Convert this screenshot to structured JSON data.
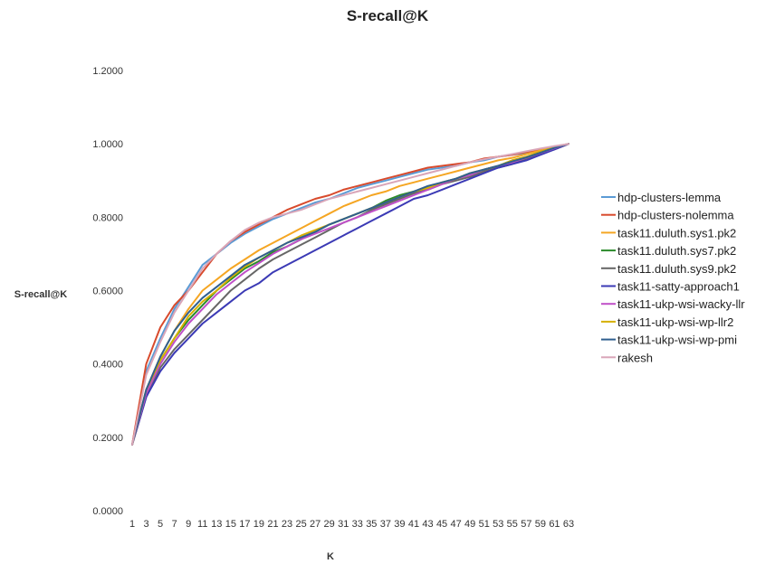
{
  "chart_data": {
    "type": "line",
    "title": "S-recall@K",
    "xlabel": "K",
    "ylabel": "S-recall@K",
    "ylim": [
      0,
      1.2
    ],
    "y_ticks": [
      "0.0000",
      "0.2000",
      "0.4000",
      "0.6000",
      "0.8000",
      "1.0000",
      "1.2000"
    ],
    "x_tick_labels": [
      "1",
      "3",
      "5",
      "7",
      "9",
      "11",
      "13",
      "15",
      "17",
      "19",
      "21",
      "23",
      "25",
      "27",
      "29",
      "31",
      "33",
      "35",
      "37",
      "39",
      "41",
      "43",
      "45",
      "47",
      "49",
      "51",
      "53",
      "55",
      "57",
      "59",
      "61",
      "63"
    ],
    "x": [
      1,
      3,
      5,
      7,
      9,
      11,
      13,
      15,
      17,
      19,
      21,
      23,
      25,
      27,
      29,
      31,
      33,
      35,
      37,
      39,
      41,
      43,
      45,
      47,
      49,
      51,
      53,
      55,
      57,
      59,
      61,
      63
    ],
    "grid": false,
    "legend_position": "right",
    "series": [
      {
        "name": "hdp-clusters-lemma",
        "color": "#5b9bd5",
        "values": [
          0.18,
          0.38,
          0.47,
          0.55,
          0.61,
          0.67,
          0.7,
          0.73,
          0.755,
          0.775,
          0.795,
          0.81,
          0.825,
          0.84,
          0.85,
          0.865,
          0.88,
          0.89,
          0.9,
          0.91,
          0.92,
          0.93,
          0.935,
          0.94,
          0.95,
          0.955,
          0.965,
          0.97,
          0.975,
          0.985,
          0.992,
          1.0
        ]
      },
      {
        "name": "hdp-clusters-nolemma",
        "color": "#d84a2c",
        "values": [
          0.18,
          0.4,
          0.5,
          0.56,
          0.6,
          0.65,
          0.7,
          0.735,
          0.76,
          0.78,
          0.8,
          0.82,
          0.835,
          0.85,
          0.86,
          0.875,
          0.885,
          0.895,
          0.905,
          0.915,
          0.925,
          0.935,
          0.94,
          0.945,
          0.95,
          0.96,
          0.965,
          0.97,
          0.978,
          0.985,
          0.992,
          1.0
        ]
      },
      {
        "name": "task11.duluth.sys1.pk2",
        "color": "#f5a623",
        "values": [
          0.18,
          0.33,
          0.42,
          0.49,
          0.55,
          0.6,
          0.63,
          0.66,
          0.685,
          0.71,
          0.73,
          0.75,
          0.77,
          0.79,
          0.81,
          0.83,
          0.845,
          0.86,
          0.87,
          0.885,
          0.895,
          0.905,
          0.915,
          0.925,
          0.935,
          0.945,
          0.955,
          0.962,
          0.972,
          0.982,
          0.991,
          1.0
        ]
      },
      {
        "name": "task11.duluth.sys7.pk2",
        "color": "#2b8a2b",
        "values": [
          0.18,
          0.32,
          0.41,
          0.47,
          0.52,
          0.56,
          0.6,
          0.63,
          0.66,
          0.68,
          0.705,
          0.72,
          0.74,
          0.76,
          0.78,
          0.795,
          0.81,
          0.825,
          0.845,
          0.86,
          0.87,
          0.88,
          0.895,
          0.905,
          0.915,
          0.93,
          0.94,
          0.955,
          0.965,
          0.978,
          0.99,
          1.0
        ]
      },
      {
        "name": "task11.duluth.sys9.pk2",
        "color": "#666666",
        "values": [
          0.18,
          0.31,
          0.39,
          0.44,
          0.48,
          0.52,
          0.56,
          0.6,
          0.63,
          0.66,
          0.685,
          0.705,
          0.725,
          0.745,
          0.765,
          0.785,
          0.8,
          0.82,
          0.835,
          0.85,
          0.865,
          0.875,
          0.89,
          0.9,
          0.91,
          0.925,
          0.935,
          0.945,
          0.96,
          0.972,
          0.985,
          1.0
        ]
      },
      {
        "name": "task11-satty-approach1",
        "color": "#3b3ab5",
        "values": [
          0.18,
          0.31,
          0.38,
          0.43,
          0.47,
          0.51,
          0.54,
          0.57,
          0.6,
          0.62,
          0.65,
          0.67,
          0.69,
          0.71,
          0.73,
          0.75,
          0.77,
          0.79,
          0.81,
          0.83,
          0.85,
          0.86,
          0.875,
          0.89,
          0.905,
          0.92,
          0.935,
          0.945,
          0.955,
          0.97,
          0.985,
          1.0
        ]
      },
      {
        "name": "task11-ukp-wsi-wacky-llr",
        "color": "#c050c8",
        "values": [
          0.18,
          0.32,
          0.4,
          0.46,
          0.51,
          0.55,
          0.59,
          0.62,
          0.65,
          0.675,
          0.7,
          0.72,
          0.74,
          0.755,
          0.77,
          0.785,
          0.8,
          0.815,
          0.83,
          0.845,
          0.86,
          0.875,
          0.89,
          0.905,
          0.915,
          0.93,
          0.94,
          0.95,
          0.962,
          0.975,
          0.988,
          1.0
        ]
      },
      {
        "name": "task11-ukp-wsi-wp-llr2",
        "color": "#d6b000",
        "values": [
          0.18,
          0.33,
          0.41,
          0.47,
          0.53,
          0.57,
          0.6,
          0.635,
          0.665,
          0.69,
          0.71,
          0.73,
          0.75,
          0.765,
          0.78,
          0.795,
          0.81,
          0.825,
          0.84,
          0.855,
          0.87,
          0.88,
          0.895,
          0.905,
          0.92,
          0.93,
          0.94,
          0.955,
          0.965,
          0.978,
          0.99,
          1.0
        ]
      },
      {
        "name": "task11-ukp-wsi-wp-pmi",
        "color": "#2f5f8f",
        "values": [
          0.18,
          0.33,
          0.42,
          0.49,
          0.54,
          0.58,
          0.61,
          0.64,
          0.67,
          0.69,
          0.71,
          0.73,
          0.745,
          0.76,
          0.78,
          0.795,
          0.81,
          0.825,
          0.84,
          0.855,
          0.87,
          0.885,
          0.895,
          0.905,
          0.92,
          0.93,
          0.94,
          0.952,
          0.963,
          0.976,
          0.989,
          1.0
        ]
      },
      {
        "name": "rakesh",
        "color": "#d9a5b8",
        "values": [
          0.18,
          0.37,
          0.46,
          0.54,
          0.6,
          0.66,
          0.7,
          0.735,
          0.765,
          0.785,
          0.8,
          0.81,
          0.82,
          0.835,
          0.85,
          0.86,
          0.87,
          0.88,
          0.89,
          0.9,
          0.91,
          0.92,
          0.93,
          0.94,
          0.95,
          0.958,
          0.965,
          0.972,
          0.98,
          0.987,
          0.994,
          1.0
        ]
      }
    ]
  }
}
